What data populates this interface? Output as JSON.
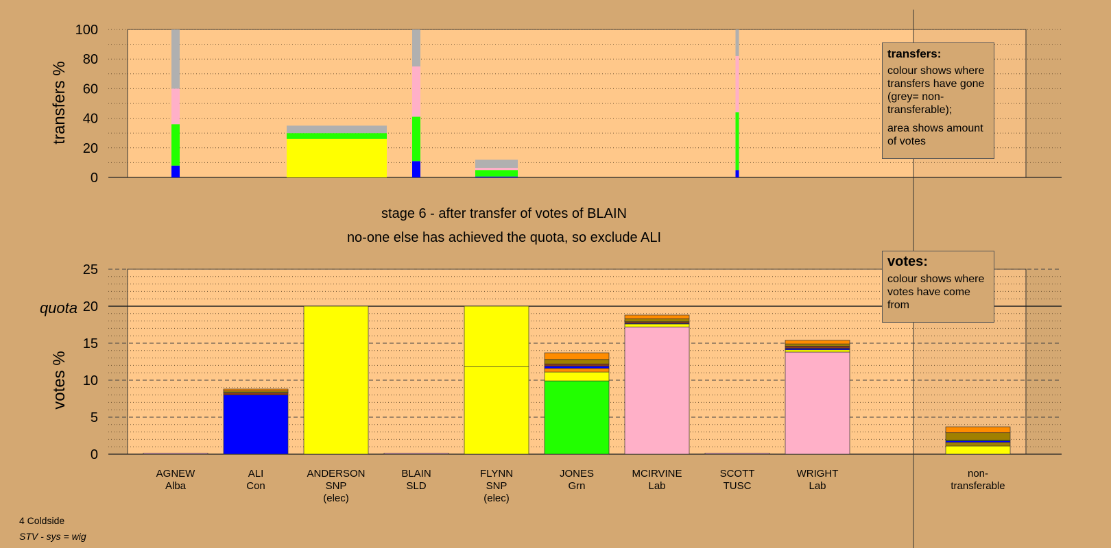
{
  "chart_data": [
    {
      "type": "bar",
      "name": "transfers",
      "ylabel": "transfers %",
      "ylim": [
        0,
        100
      ],
      "yticks": [
        0,
        20,
        40,
        60,
        80,
        100
      ],
      "grid": "dotted every 10",
      "segment_order_bottom_to_top": [
        "blue",
        "green",
        "pink",
        "grey"
      ],
      "bars": [
        {
          "candidate": "AGNEW",
          "width": "thin",
          "segments": [
            {
              "color": "#0000ff",
              "value": 8
            },
            {
              "color": "#22ff00",
              "value": 28
            },
            {
              "color": "#ffb0c8",
              "value": 24
            },
            {
              "color": "#b0b0b0",
              "value": 40
            }
          ]
        },
        {
          "candidate": "ANDERSON",
          "width": "wide",
          "segments": [
            {
              "color": "#ffff00",
              "value": 26
            },
            {
              "color": "#22ff00",
              "value": 4
            },
            {
              "color": "#b0b0b0",
              "value": 5
            }
          ]
        },
        {
          "candidate": "BLAIN",
          "width": "thin",
          "segments": [
            {
              "color": "#0000ff",
              "value": 11
            },
            {
              "color": "#22ff00",
              "value": 30
            },
            {
              "color": "#ffb0c8",
              "value": 34
            },
            {
              "color": "#b0b0b0",
              "value": 25
            }
          ]
        },
        {
          "candidate": "FLYNN",
          "width": "medium",
          "segments": [
            {
              "color": "#0000ff",
              "value": 0.6
            },
            {
              "color": "#22ff00",
              "value": 4.4
            },
            {
              "color": "#ffb0c8",
              "value": 1.5
            },
            {
              "color": "#b0b0b0",
              "value": 5.5
            }
          ]
        },
        {
          "candidate": "SCOTT",
          "width": "hairline",
          "segments": [
            {
              "color": "#0000ff",
              "value": 5
            },
            {
              "color": "#22ff00",
              "value": 39
            },
            {
              "color": "#ffb0c8",
              "value": 38
            },
            {
              "color": "#b0b0b0",
              "value": 18
            }
          ]
        }
      ]
    },
    {
      "type": "bar",
      "name": "votes",
      "ylabel": "votes %",
      "ylim": [
        0,
        25
      ],
      "yticks": [
        0,
        5,
        10,
        15,
        20,
        25
      ],
      "quota": 20,
      "quota_label": "quota",
      "grid": "dotted every 1, dashed every 5",
      "categories": [
        {
          "name": "AGNEW",
          "party": "Alba",
          "note": ""
        },
        {
          "name": "ALI",
          "party": "Con",
          "note": ""
        },
        {
          "name": "ANDERSON",
          "party": "SNP",
          "note": "(elec)"
        },
        {
          "name": "BLAIN",
          "party": "SLD",
          "note": ""
        },
        {
          "name": "FLYNN",
          "party": "SNP",
          "note": "(elec)"
        },
        {
          "name": "JONES",
          "party": "Grn",
          "note": ""
        },
        {
          "name": "MCIRVINE",
          "party": "Lab",
          "note": ""
        },
        {
          "name": "SCOTT",
          "party": "TUSC",
          "note": ""
        },
        {
          "name": "WRIGHT",
          "party": "Lab",
          "note": ""
        },
        {
          "name": "non-",
          "party": "transferable",
          "note": ""
        }
      ],
      "stacks": [
        [
          {
            "color": "#ffb0c8",
            "value": 0.15
          }
        ],
        [
          {
            "color": "#0000ff",
            "value": 8.0
          },
          {
            "color": "#8b3a1a",
            "value": 0.3
          },
          {
            "color": "#ffff00",
            "value": 0.1
          },
          {
            "color": "#a08000",
            "value": 0.15
          },
          {
            "color": "#ff8c00",
            "value": 0.25
          }
        ],
        [
          {
            "color": "#ffff00",
            "value": 20.0
          }
        ],
        [
          {
            "color": "#ffb0c8",
            "value": 0.15
          }
        ],
        [
          {
            "color": "#ffff00",
            "value": 11.8
          },
          {
            "color": "#ffff00",
            "value": 8.2
          }
        ],
        [
          {
            "color": "#22ff00",
            "value": 9.9
          },
          {
            "color": "#ffff00",
            "value": 1.2
          },
          {
            "color": "#ff8c00",
            "value": 0.5
          },
          {
            "color": "#0000ff",
            "value": 0.3
          },
          {
            "color": "#8b3a1a",
            "value": 0.3
          },
          {
            "color": "#a08000",
            "value": 0.6
          },
          {
            "color": "#ff8c00",
            "value": 0.9
          }
        ],
        [
          {
            "color": "#ffb0c8",
            "value": 17.2
          },
          {
            "color": "#ffff00",
            "value": 0.4
          },
          {
            "color": "#0000ff",
            "value": 0.1
          },
          {
            "color": "#8b3a1a",
            "value": 0.2
          },
          {
            "color": "#a08000",
            "value": 0.4
          },
          {
            "color": "#ff8c00",
            "value": 0.5
          }
        ],
        [
          {
            "color": "#ffb0c8",
            "value": 0.15
          }
        ],
        [
          {
            "color": "#ffb0c8",
            "value": 13.8
          },
          {
            "color": "#ffff00",
            "value": 0.3
          },
          {
            "color": "#0000ff",
            "value": 0.2
          },
          {
            "color": "#8b3a1a",
            "value": 0.3
          },
          {
            "color": "#a08000",
            "value": 0.3
          },
          {
            "color": "#ff8c00",
            "value": 0.5
          }
        ],
        [
          {
            "color": "#ffff00",
            "value": 1.1
          },
          {
            "color": "#a08000",
            "value": 0.5
          },
          {
            "color": "#0000ff",
            "value": 0.2
          },
          {
            "color": "#22ff00",
            "value": 0.1
          },
          {
            "color": "#a08000",
            "value": 1.0
          },
          {
            "color": "#ff8c00",
            "value": 0.8
          }
        ]
      ]
    }
  ],
  "headline": {
    "line1": "stage 6 - after transfer of votes of BLAIN",
    "line2": "no-one else has achieved the quota, so exclude ALI"
  },
  "legend_transfers": {
    "title": "transfers:",
    "text1": "colour shows where transfers have gone (grey= non-transferable);",
    "text2": "area shows amount of votes"
  },
  "legend_votes": {
    "title": "votes:",
    "text1": "colour shows where votes have come from"
  },
  "footer": {
    "ward": "4 Coldside",
    "system": "STV - sys = wig"
  },
  "colors": {
    "background": "#d4a872",
    "plot_background": "#ffc88a",
    "blue": "#0000ff",
    "green": "#22ff00",
    "pink": "#ffb0c8",
    "grey": "#b0b0b0",
    "yellow": "#ffff00",
    "orange": "#ff8c00",
    "olive": "#a08000",
    "brown": "#8b3a1a"
  }
}
